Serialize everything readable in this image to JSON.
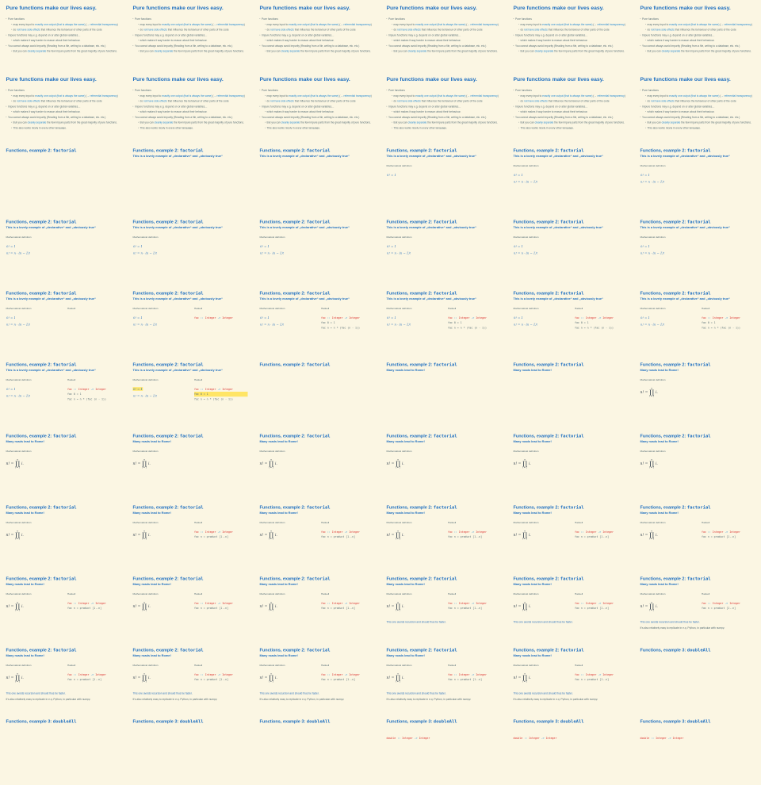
{
  "colors": {
    "background": "#fbf6e3",
    "title_blue": "#1e6fc0",
    "link_blue": "#268bd2",
    "body_text": "#586e75",
    "code_red": "#dc322f",
    "code_blue": "#268bd2",
    "code_plain": "#586e75",
    "formula_blue": "#2e74bd",
    "formula_dark": "#2b3a4a",
    "highlight_yellow": "#ffe566"
  },
  "grid": {
    "columns": 6,
    "rows": 11
  },
  "content": {
    "pure": {
      "title": "Pure functions make our lives easy.",
      "bullets": [
        {
          "level": 1,
          "segments": [
            {
              "t": "Pure functions"
            }
          ]
        },
        {
          "level": 2,
          "segments": [
            {
              "t": "map every input to "
            },
            {
              "t": "exactly one output (that is always the same)",
              "c": "link"
            },
            {
              "t": " ("
            },
            {
              "t": "→ referential transparency",
              "c": "link"
            },
            {
              "t": ")"
            }
          ]
        },
        {
          "level": 2,
          "segments": [
            {
              "t": "do "
            },
            {
              "t": "not have side effects",
              "c": "link"
            },
            {
              "t": " that influence the behaviour of other parts of the code"
            }
          ]
        },
        {
          "level": 1,
          "segments": [
            {
              "t": "Impure functions may e.g. depend on or alter global variables…"
            }
          ]
        },
        {
          "level": 2,
          "segments": [
            {
              "t": "which makes it way harder to reason about their behaviour."
            }
          ]
        },
        {
          "level": 1,
          "segments": [
            {
              "t": "You cannot always avoid impurity (Reading from a file, writing to a database, etc. etc.)"
            }
          ]
        },
        {
          "level": 2,
          "segments": [
            {
              "t": "But you can "
            },
            {
              "t": "cleanly separate",
              "c": "link"
            },
            {
              "t": " the few impure parts from the great majority of pure functions."
            }
          ]
        },
        {
          "level": 2,
          "segments": [
            {
              "t": "This also works nicely in every other language."
            }
          ]
        }
      ]
    },
    "factorial": {
      "title_text": "Functions, example 2: ",
      "title_code": "factorial",
      "subtitle_declarative": "This is a lovely example of „declarative“ and „obviously true“",
      "subtitle_rome": "Many roads lead to Rome!",
      "mathdef_label": "Mathematical definition",
      "haskell_label": "Haskell",
      "formula_base": "0! = 1",
      "formula_rec": "n! = n · (n − 1)!",
      "formula_product": {
        "lhs": "n! =",
        "sup": "n",
        "op": "∏",
        "sub": "i = 1",
        "rhs": "i."
      },
      "code_recursive": [
        [
          {
            "t": "fac",
            "c": "red"
          },
          {
            "t": " :: ",
            "c": "blue"
          },
          {
            "t": "Integer",
            "c": "red"
          },
          {
            "t": " -> ",
            "c": "blue"
          },
          {
            "t": "Integer",
            "c": "red"
          }
        ],
        [
          {
            "t": "fac 0 = 1",
            "c": "plain"
          }
        ],
        [
          {
            "t": "fac n = n * (fac (n - 1))",
            "c": "plain"
          }
        ]
      ],
      "code_product": [
        [
          {
            "t": "fac",
            "c": "red"
          },
          {
            "t": " :: ",
            "c": "blue"
          },
          {
            "t": "Integer",
            "c": "red"
          },
          {
            "t": " -> ",
            "c": "blue"
          },
          {
            "t": "Integer",
            "c": "red"
          }
        ],
        [
          {
            "t": "fac n = product [1..n]",
            "c": "plain"
          }
        ]
      ],
      "note_recursion": "This one avoids recursion and should thus be faster.",
      "note_numpy": "It’s also relatively easy to replicate in e.g. Python, in particular with numpy."
    },
    "double": {
      "title_text": "Functions, example 3: ",
      "title_code": "doubleAll",
      "code_signature": [
        [
          {
            "t": "double",
            "c": "red"
          },
          {
            "t": " :: ",
            "c": "blue"
          },
          {
            "t": "Integer",
            "c": "red"
          },
          {
            "t": " -> ",
            "c": "blue"
          },
          {
            "t": "Integer",
            "c": "red"
          }
        ]
      ]
    }
  },
  "states": {
    "pure-a": {
      "content": "pure",
      "bullets": 7
    },
    "pure-b": {
      "content": "pure",
      "bullets": 8
    },
    "fac-title": {
      "content": "factorial"
    },
    "fac-decl": {
      "content": "factorial",
      "subtitle": "declarative"
    },
    "fac-decl-md0": {
      "content": "factorial",
      "subtitle": "declarative",
      "mathdef": true,
      "formulas": [
        "base"
      ]
    },
    "fac-decl-md": {
      "content": "factorial",
      "subtitle": "declarative",
      "mathdef": true,
      "formulas": [
        "base",
        "rec"
      ]
    },
    "fac-decl-hask": {
      "content": "factorial",
      "subtitle": "declarative",
      "mathdef": true,
      "formulas": [
        "base",
        "rec"
      ],
      "haskell": true
    },
    "fac-decl-sig": {
      "content": "factorial",
      "subtitle": "declarative",
      "mathdef": true,
      "formulas": [
        "base",
        "rec"
      ],
      "haskell": true,
      "code": "recursive",
      "code_lines": 1
    },
    "fac-decl-code": {
      "content": "factorial",
      "subtitle": "declarative",
      "mathdef": true,
      "formulas": [
        "base",
        "rec"
      ],
      "haskell": true,
      "code": "recursive",
      "code_lines": 3
    },
    "fac-decl-hl": {
      "content": "factorial",
      "subtitle": "declarative",
      "mathdef": true,
      "formulas": [
        "base",
        "rec"
      ],
      "haskell": true,
      "code": "recursive",
      "code_lines": 3,
      "highlight": true
    },
    "fac-rome": {
      "content": "factorial",
      "subtitle": "rome"
    },
    "fac-rome-md": {
      "content": "factorial",
      "subtitle": "rome",
      "mathdef": true,
      "formulas": [
        "product"
      ]
    },
    "fac-rome-code": {
      "content": "factorial",
      "subtitle": "rome",
      "mathdef": true,
      "formulas": [
        "product"
      ],
      "haskell": true,
      "code": "product",
      "code_lines": 2
    },
    "fac-rome-note1": {
      "content": "factorial",
      "subtitle": "rome",
      "mathdef": true,
      "formulas": [
        "product"
      ],
      "haskell": true,
      "code": "product",
      "code_lines": 2,
      "notes": [
        "recursion"
      ]
    },
    "fac-rome-note2": {
      "content": "factorial",
      "subtitle": "rome",
      "mathdef": true,
      "formulas": [
        "product"
      ],
      "haskell": true,
      "code": "product",
      "code_lines": 2,
      "notes": [
        "recursion",
        "numpy"
      ]
    },
    "dbl-title": {
      "content": "double"
    },
    "dbl-code": {
      "content": "double",
      "code": true
    }
  },
  "frames": [
    "pure-a",
    "pure-a",
    "pure-a",
    "pure-a",
    "pure-a",
    "pure-a",
    "pure-b",
    "pure-b",
    "pure-b",
    "pure-b",
    "pure-b",
    "pure-b",
    "fac-title",
    "fac-decl",
    "fac-decl",
    "fac-decl-md0",
    "fac-decl-md",
    "fac-decl-md",
    "fac-decl-md",
    "fac-decl-md",
    "fac-decl-md",
    "fac-decl-md",
    "fac-decl-md",
    "fac-decl-md",
    "fac-decl-hask",
    "fac-decl-sig",
    "fac-decl-code",
    "fac-decl-code",
    "fac-decl-code",
    "fac-decl-code",
    "fac-decl-code",
    "fac-decl-hl",
    "fac-title",
    "fac-rome",
    "fac-rome",
    "fac-rome-md",
    "fac-rome-md",
    "fac-rome-md",
    "fac-rome-md",
    "fac-rome-md",
    "fac-rome-md",
    "fac-rome-md",
    "fac-rome-md",
    "fac-rome-code",
    "fac-rome-code",
    "fac-rome-code",
    "fac-rome-code",
    "fac-rome-code",
    "fac-rome-code",
    "fac-rome-code",
    "fac-rome-code",
    "fac-rome-note1",
    "fac-rome-note1",
    "fac-rome-note2",
    "fac-rome-note2",
    "fac-rome-note2",
    "fac-rome-note2",
    "fac-rome-note2",
    "fac-rome-note2",
    "dbl-title",
    "dbl-title",
    "dbl-title",
    "dbl-title",
    "dbl-code",
    "dbl-code",
    "dbl-code"
  ]
}
